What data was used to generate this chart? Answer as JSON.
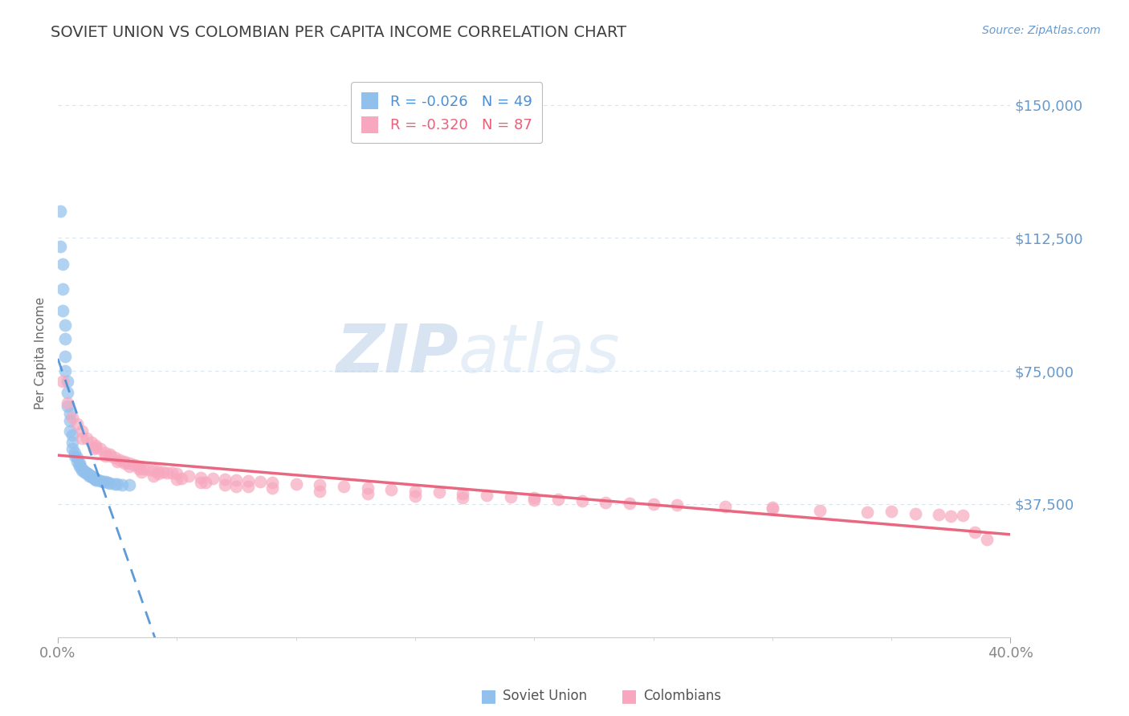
{
  "title": "SOVIET UNION VS COLOMBIAN PER CAPITA INCOME CORRELATION CHART",
  "source_text": "Source: ZipAtlas.com",
  "ylabel": "Per Capita Income",
  "xlim": [
    0.0,
    0.4
  ],
  "ylim": [
    0,
    160000
  ],
  "yticks": [
    37500,
    75000,
    112500,
    150000
  ],
  "ytick_labels": [
    "$37,500",
    "$75,000",
    "$112,500",
    "$150,000"
  ],
  "xtick_positions": [
    0.0,
    0.4
  ],
  "xtick_labels": [
    "0.0%",
    "40.0%"
  ],
  "blue_R": -0.026,
  "blue_N": 49,
  "pink_R": -0.32,
  "pink_N": 87,
  "blue_color": "#92c0ed",
  "pink_color": "#f7a8be",
  "blue_line_color": "#4a8fd4",
  "pink_line_color": "#e8607a",
  "title_color": "#404040",
  "axis_label_color": "#6699cc",
  "tick_color": "#888888",
  "grid_color": "#d8e4f0",
  "watermark_color": "#d0dff0",
  "blue_scatter_x": [
    0.001,
    0.001,
    0.002,
    0.002,
    0.002,
    0.003,
    0.003,
    0.003,
    0.003,
    0.004,
    0.004,
    0.004,
    0.005,
    0.005,
    0.005,
    0.006,
    0.006,
    0.006,
    0.007,
    0.007,
    0.008,
    0.008,
    0.009,
    0.009,
    0.009,
    0.01,
    0.01,
    0.011,
    0.011,
    0.012,
    0.012,
    0.013,
    0.013,
    0.014,
    0.014,
    0.015,
    0.015,
    0.016,
    0.016,
    0.017,
    0.018,
    0.019,
    0.02,
    0.021,
    0.022,
    0.024,
    0.025,
    0.027,
    0.03
  ],
  "blue_scatter_y": [
    120000,
    110000,
    105000,
    98000,
    92000,
    88000,
    84000,
    79000,
    75000,
    72000,
    69000,
    65000,
    63000,
    61000,
    58000,
    57000,
    55000,
    53000,
    52000,
    51000,
    50500,
    49500,
    49000,
    48500,
    48000,
    47500,
    47000,
    46800,
    46500,
    46200,
    46000,
    45800,
    45500,
    45300,
    45100,
    44900,
    44700,
    44500,
    44300,
    44200,
    44000,
    43800,
    43700,
    43500,
    43300,
    43200,
    43100,
    43000,
    42900
  ],
  "pink_scatter_x": [
    0.002,
    0.004,
    0.006,
    0.008,
    0.01,
    0.012,
    0.014,
    0.016,
    0.018,
    0.02,
    0.022,
    0.024,
    0.026,
    0.028,
    0.03,
    0.032,
    0.034,
    0.036,
    0.038,
    0.04,
    0.042,
    0.044,
    0.046,
    0.048,
    0.05,
    0.055,
    0.06,
    0.065,
    0.07,
    0.075,
    0.08,
    0.085,
    0.09,
    0.1,
    0.11,
    0.12,
    0.13,
    0.14,
    0.15,
    0.16,
    0.17,
    0.18,
    0.19,
    0.2,
    0.21,
    0.22,
    0.23,
    0.24,
    0.26,
    0.28,
    0.3,
    0.32,
    0.34,
    0.36,
    0.37,
    0.38,
    0.39,
    0.01,
    0.015,
    0.02,
    0.025,
    0.03,
    0.035,
    0.04,
    0.05,
    0.06,
    0.07,
    0.08,
    0.09,
    0.11,
    0.13,
    0.15,
    0.17,
    0.2,
    0.25,
    0.3,
    0.35,
    0.375,
    0.385,
    0.016,
    0.022,
    0.028,
    0.034,
    0.042,
    0.052,
    0.062,
    0.075
  ],
  "pink_scatter_y": [
    72000,
    66000,
    62000,
    60000,
    58000,
    56000,
    55000,
    54000,
    53000,
    52000,
    51000,
    50500,
    50000,
    49500,
    49000,
    48500,
    48000,
    47500,
    47200,
    47000,
    46800,
    46600,
    46400,
    46200,
    46000,
    45500,
    45000,
    44700,
    44400,
    44200,
    44000,
    43800,
    43600,
    43200,
    42800,
    42400,
    42000,
    41600,
    41200,
    40800,
    40400,
    40000,
    39600,
    39200,
    38800,
    38400,
    38000,
    37700,
    37200,
    36700,
    36200,
    35700,
    35200,
    34700,
    34500,
    34200,
    27500,
    56000,
    53000,
    51000,
    49500,
    48000,
    46500,
    45500,
    44500,
    43500,
    43000,
    42500,
    42000,
    41200,
    40500,
    39800,
    39200,
    38500,
    37500,
    36500,
    35500,
    34000,
    29500,
    53500,
    51500,
    49000,
    47500,
    46000,
    44800,
    43500,
    42500
  ]
}
